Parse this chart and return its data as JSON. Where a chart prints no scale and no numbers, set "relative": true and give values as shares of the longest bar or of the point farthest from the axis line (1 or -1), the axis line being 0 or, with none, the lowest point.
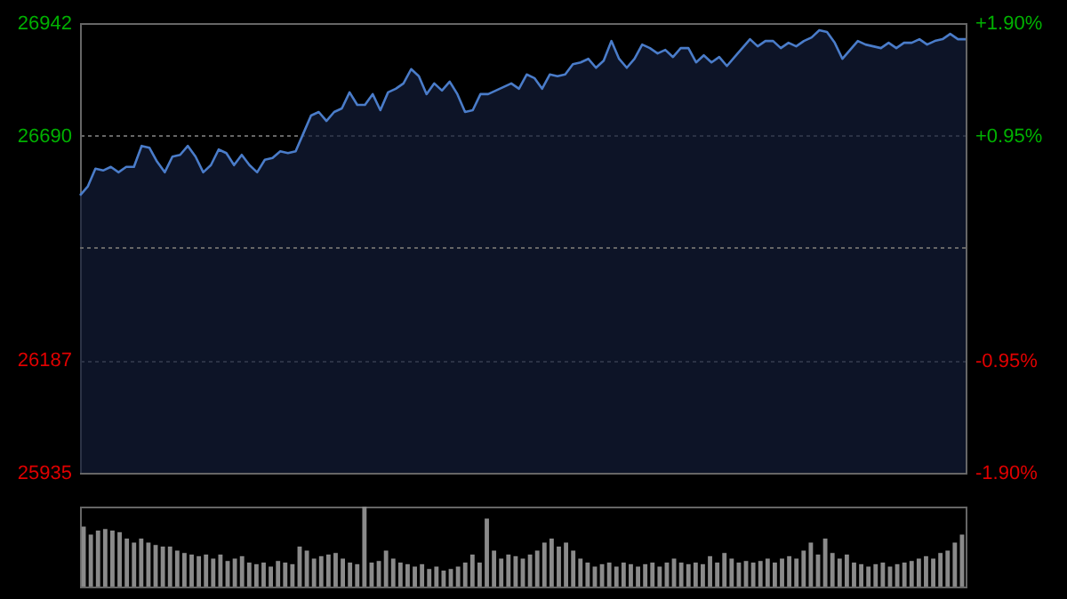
{
  "chart_data": [
    {
      "type": "area",
      "ylim": [
        25935,
        26942
      ],
      "yticks": [
        25935,
        26187,
        26690,
        26942
      ],
      "y2lim": [
        -1.9,
        1.9
      ],
      "y2ticks": [
        {
          "value": -1.9,
          "label": "-1.90%"
        },
        {
          "value": -0.95,
          "label": "-0.95%"
        },
        {
          "value": 0.95,
          "label": "+0.95%"
        },
        {
          "value": 1.9,
          "label": "+1.90%"
        }
      ],
      "grid": "y",
      "ref_lines": [
        {
          "axis": "y",
          "value": 26438.5
        }
      ],
      "categories": [
        null,
        null,
        null,
        null,
        null,
        null,
        null,
        null,
        null,
        null,
        null,
        null,
        null,
        null,
        null,
        null,
        null,
        null,
        null,
        null,
        null,
        null,
        null,
        null,
        null,
        null,
        null,
        null,
        null,
        null,
        null,
        null,
        null,
        null,
        null,
        null,
        null,
        null,
        null,
        null,
        null,
        null,
        null,
        null,
        null,
        null,
        null,
        null,
        null,
        null,
        null,
        null,
        null,
        null,
        null,
        null,
        null,
        null,
        null,
        null,
        null,
        null,
        null,
        null,
        null,
        null,
        null,
        null,
        null,
        null,
        null,
        null,
        null,
        null,
        null,
        null,
        null,
        null,
        null,
        null,
        null,
        null,
        null,
        null,
        null,
        null,
        null,
        null,
        null,
        null,
        null,
        null,
        null,
        null,
        null,
        null,
        null,
        null,
        null,
        null,
        null,
        null,
        null,
        null,
        null,
        null,
        null,
        null,
        null,
        null,
        null,
        null,
        null,
        null,
        null,
        null
      ],
      "series": [
        {
          "color": "#4a7cc9",
          "values": [
            26556,
            26576,
            26616,
            26612,
            26620,
            26608,
            26620,
            26620,
            26667,
            26663,
            26632,
            26608,
            26643,
            26647,
            26667,
            26643,
            26608,
            26624,
            26659,
            26651,
            26624,
            26647,
            26624,
            26608,
            26636,
            26640,
            26655,
            26651,
            26655,
            26695,
            26735,
            26743,
            26723,
            26743,
            26751,
            26787,
            26759,
            26759,
            26783,
            26747,
            26787,
            26795,
            26807,
            26839,
            26823,
            26783,
            26807,
            26791,
            26811,
            26783,
            26743,
            26747,
            26783,
            26783,
            26791,
            26799,
            26807,
            26795,
            26827,
            26819,
            26795,
            26827,
            26823,
            26827,
            26850,
            26854,
            26862,
            26842,
            26858,
            26902,
            26862,
            26842,
            26862,
            26894,
            26886,
            26874,
            26882,
            26866,
            26886,
            26886,
            26854,
            26870,
            26854,
            26866,
            26846,
            26866,
            26886,
            26906,
            26890,
            26902,
            26902,
            26886,
            26898,
            26890,
            26902,
            26910,
            26926,
            26922,
            26898,
            26862,
            26882,
            26902,
            26894,
            26890,
            26886,
            26898,
            26886,
            26898,
            26898,
            26906,
            26894,
            26902,
            26906,
            26918,
            26906,
            26906
          ]
        }
      ]
    },
    {
      "type": "bar",
      "relative": true,
      "categories": [
        null,
        null,
        null,
        null,
        null,
        null,
        null,
        null,
        null,
        null,
        null,
        null,
        null,
        null,
        null,
        null,
        null,
        null,
        null,
        null,
        null,
        null,
        null,
        null,
        null,
        null,
        null,
        null,
        null,
        null,
        null,
        null,
        null,
        null,
        null,
        null,
        null,
        null,
        null,
        null,
        null,
        null,
        null,
        null,
        null,
        null,
        null,
        null,
        null,
        null,
        null,
        null,
        null,
        null,
        null,
        null,
        null,
        null,
        null,
        null,
        null,
        null,
        null,
        null,
        null,
        null,
        null,
        null,
        null,
        null,
        null,
        null,
        null,
        null,
        null,
        null,
        null,
        null,
        null,
        null,
        null,
        null,
        null,
        null,
        null,
        null,
        null,
        null,
        null,
        null,
        null,
        null,
        null,
        null,
        null,
        null,
        null,
        null,
        null,
        null,
        null,
        null,
        null,
        null,
        null,
        null,
        null,
        null,
        null,
        null,
        null,
        null,
        null,
        null,
        null,
        null,
        null,
        null,
        null,
        null,
        null,
        null,
        null
      ],
      "series": [
        {
          "color": "#8a8a8a",
          "values": [
            0.75,
            0.65,
            0.7,
            0.72,
            0.7,
            0.68,
            0.6,
            0.55,
            0.6,
            0.55,
            0.52,
            0.5,
            0.5,
            0.45,
            0.42,
            0.4,
            0.38,
            0.4,
            0.35,
            0.4,
            0.32,
            0.35,
            0.38,
            0.3,
            0.28,
            0.3,
            0.25,
            0.32,
            0.3,
            0.28,
            0.5,
            0.45,
            0.35,
            0.38,
            0.4,
            0.42,
            0.35,
            0.3,
            0.28,
            1.0,
            0.3,
            0.32,
            0.45,
            0.35,
            0.3,
            0.28,
            0.25,
            0.28,
            0.22,
            0.25,
            0.2,
            0.22,
            0.25,
            0.3,
            0.4,
            0.3,
            0.85,
            0.45,
            0.35,
            0.4,
            0.38,
            0.35,
            0.4,
            0.45,
            0.55,
            0.6,
            0.5,
            0.55,
            0.45,
            0.35,
            0.3,
            0.25,
            0.28,
            0.3,
            0.25,
            0.3,
            0.28,
            0.25,
            0.28,
            0.3,
            0.25,
            0.3,
            0.35,
            0.3,
            0.28,
            0.3,
            0.28,
            0.38,
            0.3,
            0.42,
            0.35,
            0.3,
            0.32,
            0.3,
            0.32,
            0.35,
            0.3,
            0.35,
            0.38,
            0.35,
            0.45,
            0.55,
            0.4,
            0.6,
            0.42,
            0.35,
            0.4,
            0.3,
            0.28,
            0.25,
            0.28,
            0.3,
            0.25,
            0.28,
            0.3,
            0.32,
            0.35,
            0.38,
            0.35,
            0.42,
            0.45,
            0.55,
            0.65
          ]
        }
      ]
    }
  ]
}
